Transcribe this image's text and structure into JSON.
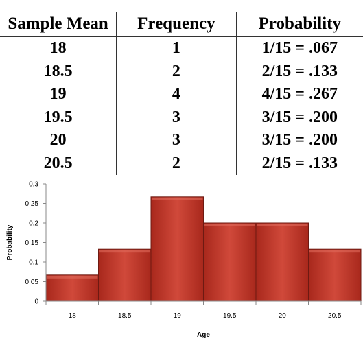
{
  "table": {
    "headers": [
      "Sample Mean",
      "Frequency",
      "Probability"
    ],
    "rows": [
      {
        "mean": "18",
        "frequency": "1",
        "probability": "1/15 = .067"
      },
      {
        "mean": "18.5",
        "frequency": "2",
        "probability": "2/15 = .133"
      },
      {
        "mean": "19",
        "frequency": "4",
        "probability": "4/15 = .267"
      },
      {
        "mean": "19.5",
        "frequency": "3",
        "probability": "3/15 = .200"
      },
      {
        "mean": "20",
        "frequency": "3",
        "probability": "3/15 = .200"
      },
      {
        "mean": "20.5",
        "frequency": "2",
        "probability": "2/15 = .133"
      }
    ]
  },
  "chart_data": {
    "type": "bar",
    "categories": [
      "18",
      "18.5",
      "19",
      "19.5",
      "20",
      "20.5"
    ],
    "values": [
      0.067,
      0.133,
      0.267,
      0.2,
      0.2,
      0.133
    ],
    "xlabel": "Age",
    "ylabel": "Probability",
    "ylim": [
      0,
      0.3
    ],
    "yticks": [
      "0",
      "0.05",
      "0.1",
      "0.15",
      "0.2",
      "0.25",
      "0.3"
    ],
    "grid": false,
    "bar_color": "#c0392b"
  }
}
